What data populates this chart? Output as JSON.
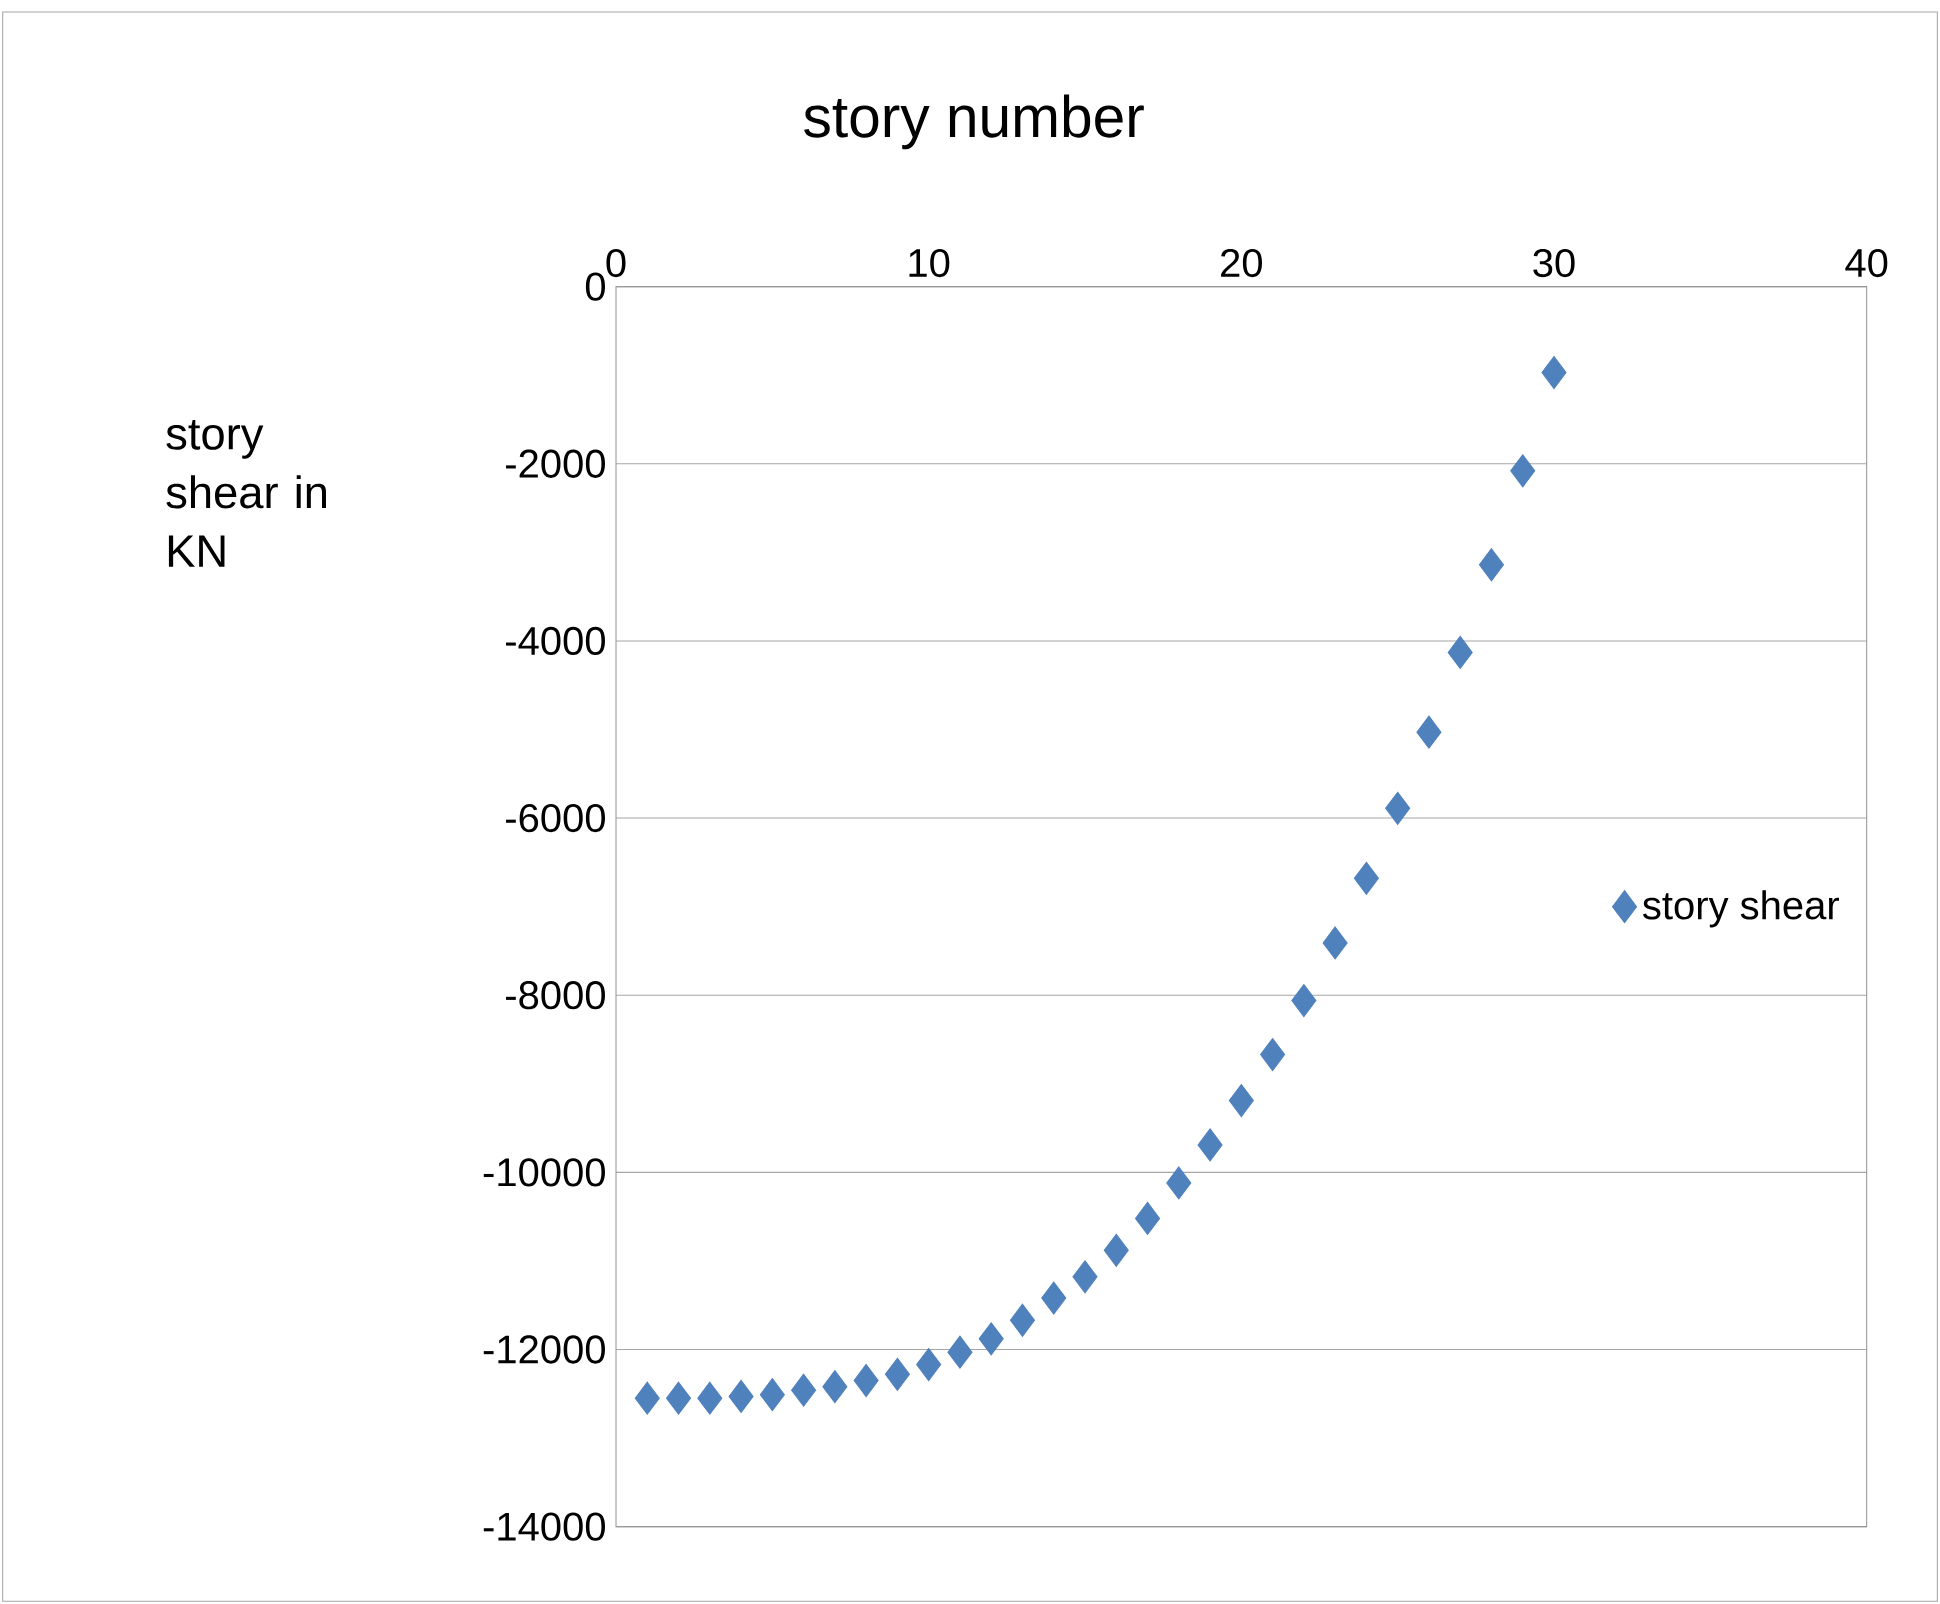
{
  "chart_data": {
    "type": "scatter",
    "xlabel": "story number",
    "ylabel": "story shear in KN",
    "x": [
      1,
      2,
      3,
      4,
      5,
      6,
      7,
      8,
      9,
      10,
      11,
      12,
      13,
      14,
      15,
      16,
      17,
      18,
      19,
      20,
      21,
      22,
      23,
      24,
      25,
      26,
      27,
      28,
      29,
      30
    ],
    "series": [
      {
        "name": "story shear",
        "color": "#4f81bd",
        "values": [
          -12550,
          -12550,
          -12550,
          -12530,
          -12510,
          -12460,
          -12420,
          -12350,
          -12280,
          -12170,
          -12030,
          -11880,
          -11670,
          -11420,
          -11180,
          -10880,
          -10520,
          -10120,
          -9690,
          -9190,
          -8670,
          -8060,
          -7410,
          -6680,
          -5890,
          -5030,
          -4130,
          -3140,
          -2080,
          -970
        ]
      }
    ],
    "xlim": [
      0,
      40
    ],
    "xticks": [
      0,
      10,
      20,
      30,
      40
    ],
    "ylim": [
      -14000,
      0
    ],
    "yticks": [
      -14000,
      -12000,
      -10000,
      -8000,
      -6000,
      -4000,
      -2000,
      0
    ],
    "grid": "y",
    "legend": "right",
    "marker": "diamond"
  }
}
